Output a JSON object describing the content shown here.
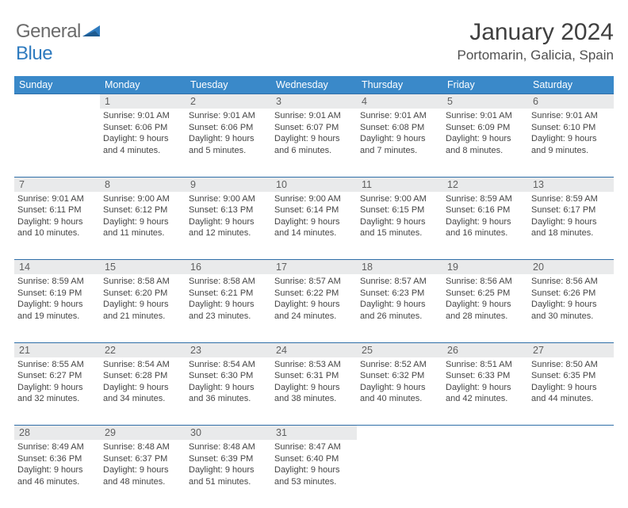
{
  "logo": {
    "general": "General",
    "blue": "Blue"
  },
  "title": "January 2024",
  "location": "Portomarin, Galicia, Spain",
  "weekdays": [
    "Sunday",
    "Monday",
    "Tuesday",
    "Wednesday",
    "Thursday",
    "Friday",
    "Saturday"
  ],
  "colors": {
    "header_bg": "#3a89c9",
    "header_text": "#ffffff",
    "daynum_bg": "#e9eaeb",
    "rule": "#2f6ea8",
    "logo_gray": "#6b6b6b",
    "logo_blue": "#2f7bbf"
  },
  "weeks": [
    [
      null,
      {
        "n": "1",
        "sr": "Sunrise: 9:01 AM",
        "ss": "Sunset: 6:06 PM",
        "d1": "Daylight: 9 hours",
        "d2": "and 4 minutes."
      },
      {
        "n": "2",
        "sr": "Sunrise: 9:01 AM",
        "ss": "Sunset: 6:06 PM",
        "d1": "Daylight: 9 hours",
        "d2": "and 5 minutes."
      },
      {
        "n": "3",
        "sr": "Sunrise: 9:01 AM",
        "ss": "Sunset: 6:07 PM",
        "d1": "Daylight: 9 hours",
        "d2": "and 6 minutes."
      },
      {
        "n": "4",
        "sr": "Sunrise: 9:01 AM",
        "ss": "Sunset: 6:08 PM",
        "d1": "Daylight: 9 hours",
        "d2": "and 7 minutes."
      },
      {
        "n": "5",
        "sr": "Sunrise: 9:01 AM",
        "ss": "Sunset: 6:09 PM",
        "d1": "Daylight: 9 hours",
        "d2": "and 8 minutes."
      },
      {
        "n": "6",
        "sr": "Sunrise: 9:01 AM",
        "ss": "Sunset: 6:10 PM",
        "d1": "Daylight: 9 hours",
        "d2": "and 9 minutes."
      }
    ],
    [
      {
        "n": "7",
        "sr": "Sunrise: 9:01 AM",
        "ss": "Sunset: 6:11 PM",
        "d1": "Daylight: 9 hours",
        "d2": "and 10 minutes."
      },
      {
        "n": "8",
        "sr": "Sunrise: 9:00 AM",
        "ss": "Sunset: 6:12 PM",
        "d1": "Daylight: 9 hours",
        "d2": "and 11 minutes."
      },
      {
        "n": "9",
        "sr": "Sunrise: 9:00 AM",
        "ss": "Sunset: 6:13 PM",
        "d1": "Daylight: 9 hours",
        "d2": "and 12 minutes."
      },
      {
        "n": "10",
        "sr": "Sunrise: 9:00 AM",
        "ss": "Sunset: 6:14 PM",
        "d1": "Daylight: 9 hours",
        "d2": "and 14 minutes."
      },
      {
        "n": "11",
        "sr": "Sunrise: 9:00 AM",
        "ss": "Sunset: 6:15 PM",
        "d1": "Daylight: 9 hours",
        "d2": "and 15 minutes."
      },
      {
        "n": "12",
        "sr": "Sunrise: 8:59 AM",
        "ss": "Sunset: 6:16 PM",
        "d1": "Daylight: 9 hours",
        "d2": "and 16 minutes."
      },
      {
        "n": "13",
        "sr": "Sunrise: 8:59 AM",
        "ss": "Sunset: 6:17 PM",
        "d1": "Daylight: 9 hours",
        "d2": "and 18 minutes."
      }
    ],
    [
      {
        "n": "14",
        "sr": "Sunrise: 8:59 AM",
        "ss": "Sunset: 6:19 PM",
        "d1": "Daylight: 9 hours",
        "d2": "and 19 minutes."
      },
      {
        "n": "15",
        "sr": "Sunrise: 8:58 AM",
        "ss": "Sunset: 6:20 PM",
        "d1": "Daylight: 9 hours",
        "d2": "and 21 minutes."
      },
      {
        "n": "16",
        "sr": "Sunrise: 8:58 AM",
        "ss": "Sunset: 6:21 PM",
        "d1": "Daylight: 9 hours",
        "d2": "and 23 minutes."
      },
      {
        "n": "17",
        "sr": "Sunrise: 8:57 AM",
        "ss": "Sunset: 6:22 PM",
        "d1": "Daylight: 9 hours",
        "d2": "and 24 minutes."
      },
      {
        "n": "18",
        "sr": "Sunrise: 8:57 AM",
        "ss": "Sunset: 6:23 PM",
        "d1": "Daylight: 9 hours",
        "d2": "and 26 minutes."
      },
      {
        "n": "19",
        "sr": "Sunrise: 8:56 AM",
        "ss": "Sunset: 6:25 PM",
        "d1": "Daylight: 9 hours",
        "d2": "and 28 minutes."
      },
      {
        "n": "20",
        "sr": "Sunrise: 8:56 AM",
        "ss": "Sunset: 6:26 PM",
        "d1": "Daylight: 9 hours",
        "d2": "and 30 minutes."
      }
    ],
    [
      {
        "n": "21",
        "sr": "Sunrise: 8:55 AM",
        "ss": "Sunset: 6:27 PM",
        "d1": "Daylight: 9 hours",
        "d2": "and 32 minutes."
      },
      {
        "n": "22",
        "sr": "Sunrise: 8:54 AM",
        "ss": "Sunset: 6:28 PM",
        "d1": "Daylight: 9 hours",
        "d2": "and 34 minutes."
      },
      {
        "n": "23",
        "sr": "Sunrise: 8:54 AM",
        "ss": "Sunset: 6:30 PM",
        "d1": "Daylight: 9 hours",
        "d2": "and 36 minutes."
      },
      {
        "n": "24",
        "sr": "Sunrise: 8:53 AM",
        "ss": "Sunset: 6:31 PM",
        "d1": "Daylight: 9 hours",
        "d2": "and 38 minutes."
      },
      {
        "n": "25",
        "sr": "Sunrise: 8:52 AM",
        "ss": "Sunset: 6:32 PM",
        "d1": "Daylight: 9 hours",
        "d2": "and 40 minutes."
      },
      {
        "n": "26",
        "sr": "Sunrise: 8:51 AM",
        "ss": "Sunset: 6:33 PM",
        "d1": "Daylight: 9 hours",
        "d2": "and 42 minutes."
      },
      {
        "n": "27",
        "sr": "Sunrise: 8:50 AM",
        "ss": "Sunset: 6:35 PM",
        "d1": "Daylight: 9 hours",
        "d2": "and 44 minutes."
      }
    ],
    [
      {
        "n": "28",
        "sr": "Sunrise: 8:49 AM",
        "ss": "Sunset: 6:36 PM",
        "d1": "Daylight: 9 hours",
        "d2": "and 46 minutes."
      },
      {
        "n": "29",
        "sr": "Sunrise: 8:48 AM",
        "ss": "Sunset: 6:37 PM",
        "d1": "Daylight: 9 hours",
        "d2": "and 48 minutes."
      },
      {
        "n": "30",
        "sr": "Sunrise: 8:48 AM",
        "ss": "Sunset: 6:39 PM",
        "d1": "Daylight: 9 hours",
        "d2": "and 51 minutes."
      },
      {
        "n": "31",
        "sr": "Sunrise: 8:47 AM",
        "ss": "Sunset: 6:40 PM",
        "d1": "Daylight: 9 hours",
        "d2": "and 53 minutes."
      },
      null,
      null,
      null
    ]
  ]
}
